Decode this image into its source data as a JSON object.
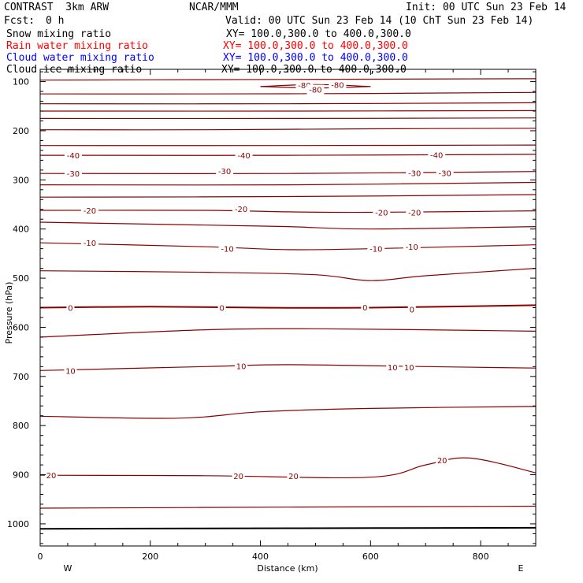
{
  "header": {
    "left_title": "CONTRAST  3km ARW",
    "center_title": "NCAR/MMM",
    "init": "Init: 00 UTC Sun 23 Feb 14",
    "fcst_label": "Fcst:",
    "fcst_value": "0 h",
    "valid": "Valid: 00 UTC Sun 23 Feb 14 (10 ChT Sun 23 Feb 14)"
  },
  "fields": [
    {
      "name": "Snow mixing ratio",
      "xy": "XY= 100.0,300.0 to 400.0,300.0",
      "color": "#000000"
    },
    {
      "name": "Rain water mixing ratio",
      "xy": "XY= 100.0,300.0 to 400.0,300.0",
      "color": "#ff0000"
    },
    {
      "name": "Cloud water mixing ratio",
      "xy": "XY= 100.0,300.0 to 400.0,300.0",
      "color": "#0000ff"
    },
    {
      "name": "Cloud ice mixing ratio",
      "xy": "XY= 100.0,300.0 to 400.0,300.0",
      "color": "#000000"
    }
  ],
  "axis": {
    "xlabel": "Distance (km)",
    "ylabel": "Pressure (hPa)",
    "west": "W",
    "east": "E"
  },
  "chart_data": {
    "type": "line",
    "xlim": [
      0,
      900
    ],
    "ylim": [
      1045,
      75
    ],
    "y_scale": "linear",
    "x_ticks": [
      0,
      200,
      400,
      600,
      800
    ],
    "y_ticks": [
      100,
      200,
      300,
      400,
      500,
      600,
      700,
      800,
      900,
      1000
    ],
    "contour_color": "#8b0000",
    "contours": [
      {
        "label": "",
        "points": [
          [
            0,
            97
          ],
          [
            300,
            96
          ],
          [
            600,
            95
          ],
          [
            900,
            94
          ]
        ]
      },
      {
        "label": "-80",
        "points": [
          [
            400,
            110
          ],
          [
            500,
            106
          ],
          [
            600,
            110
          ]
        ]
      },
      {
        "label": "-80",
        "points": [
          [
            400,
            110
          ],
          [
            500,
            113
          ],
          [
            600,
            110
          ]
        ]
      },
      {
        "label": "",
        "points": [
          [
            0,
            125
          ],
          [
            300,
            125
          ],
          [
            600,
            124
          ],
          [
            900,
            122
          ]
        ]
      },
      {
        "label": "",
        "points": [
          [
            0,
            145
          ],
          [
            450,
            145
          ],
          [
            900,
            143
          ]
        ]
      },
      {
        "label": "",
        "points": [
          [
            0,
            160
          ],
          [
            450,
            160
          ],
          [
            900,
            159
          ]
        ]
      },
      {
        "label": "",
        "points": [
          [
            0,
            175
          ],
          [
            450,
            175
          ],
          [
            900,
            174
          ]
        ]
      },
      {
        "label": "",
        "points": [
          [
            0,
            198
          ],
          [
            300,
            198
          ],
          [
            600,
            196
          ],
          [
            900,
            195
          ]
        ]
      },
      {
        "label": "",
        "points": [
          [
            0,
            230
          ],
          [
            450,
            230
          ],
          [
            900,
            229
          ]
        ]
      },
      {
        "label": "-40",
        "points": [
          [
            0,
            250
          ],
          [
            450,
            250
          ],
          [
            900,
            248
          ]
        ]
      },
      {
        "label": "-30",
        "points": [
          [
            0,
            287
          ],
          [
            450,
            287
          ],
          [
            900,
            283
          ]
        ]
      },
      {
        "label": "",
        "points": [
          [
            0,
            310
          ],
          [
            450,
            310
          ],
          [
            900,
            305
          ]
        ]
      },
      {
        "label": "",
        "points": [
          [
            0,
            335
          ],
          [
            450,
            334
          ],
          [
            900,
            330
          ]
        ]
      },
      {
        "label": "-20",
        "points": [
          [
            0,
            362
          ],
          [
            300,
            362
          ],
          [
            450,
            365
          ],
          [
            600,
            366
          ],
          [
            900,
            363
          ]
        ]
      },
      {
        "label": "",
        "points": [
          [
            0,
            386
          ],
          [
            300,
            392
          ],
          [
            450,
            395
          ],
          [
            600,
            400
          ],
          [
            900,
            395
          ]
        ]
      },
      {
        "label": "-10",
        "points": [
          [
            0,
            428
          ],
          [
            300,
            436
          ],
          [
            450,
            442
          ],
          [
            600,
            440
          ],
          [
            900,
            432
          ]
        ]
      },
      {
        "label": "",
        "points": [
          [
            0,
            485
          ],
          [
            300,
            488
          ],
          [
            500,
            493
          ],
          [
            600,
            505
          ],
          [
            700,
            495
          ],
          [
            900,
            480
          ]
        ]
      },
      {
        "label": "0",
        "points": [
          [
            0,
            560
          ],
          [
            200,
            558
          ],
          [
            400,
            560
          ],
          [
            600,
            560
          ],
          [
            900,
            555
          ]
        ]
      },
      {
        "label": "",
        "points": [
          [
            0,
            620
          ],
          [
            300,
            605
          ],
          [
            500,
            603
          ],
          [
            700,
            605
          ],
          [
            900,
            608
          ]
        ]
      },
      {
        "label": "10",
        "points": [
          [
            0,
            688
          ],
          [
            300,
            680
          ],
          [
            450,
            676
          ],
          [
            700,
            680
          ],
          [
            900,
            683
          ]
        ]
      },
      {
        "label": "",
        "points": [
          [
            0,
            781
          ],
          [
            250,
            785
          ],
          [
            400,
            772
          ],
          [
            600,
            765
          ],
          [
            900,
            761
          ]
        ]
      },
      {
        "label": "20",
        "points": [
          [
            0,
            901
          ],
          [
            300,
            902
          ],
          [
            600,
            905
          ],
          [
            700,
            880
          ],
          [
            780,
            866
          ],
          [
            900,
            896
          ]
        ]
      },
      {
        "label": "",
        "points": [
          [
            0,
            968
          ],
          [
            450,
            966
          ],
          [
            900,
            964
          ]
        ]
      }
    ],
    "labels": [
      {
        "text": "-80",
        "x": 480,
        "y": 107
      },
      {
        "text": "-80",
        "x": 540,
        "y": 106
      },
      {
        "text": "-80",
        "x": 500,
        "y": 116
      },
      {
        "text": "-40",
        "x": 60,
        "y": 250
      },
      {
        "text": "-40",
        "x": 370,
        "y": 250
      },
      {
        "text": "-40",
        "x": 720,
        "y": 249
      },
      {
        "text": "-30",
        "x": 60,
        "y": 287
      },
      {
        "text": "-30",
        "x": 335,
        "y": 282
      },
      {
        "text": "-30",
        "x": 680,
        "y": 286
      },
      {
        "text": "-30",
        "x": 735,
        "y": 286
      },
      {
        "text": "-20",
        "x": 90,
        "y": 362
      },
      {
        "text": "-20",
        "x": 365,
        "y": 359
      },
      {
        "text": "-20",
        "x": 620,
        "y": 366
      },
      {
        "text": "-20",
        "x": 680,
        "y": 366
      },
      {
        "text": "-10",
        "x": 90,
        "y": 428
      },
      {
        "text": "-10",
        "x": 340,
        "y": 440
      },
      {
        "text": "-10",
        "x": 610,
        "y": 440
      },
      {
        "text": "-10",
        "x": 675,
        "y": 436
      },
      {
        "text": "0",
        "x": 55,
        "y": 560
      },
      {
        "text": "0",
        "x": 330,
        "y": 560
      },
      {
        "text": "0",
        "x": 590,
        "y": 559
      },
      {
        "text": "0",
        "x": 675,
        "y": 563
      },
      {
        "text": "10",
        "x": 55,
        "y": 688
      },
      {
        "text": "10",
        "x": 365,
        "y": 679
      },
      {
        "text": "10",
        "x": 640,
        "y": 681
      },
      {
        "text": "10",
        "x": 670,
        "y": 681
      },
      {
        "text": "20",
        "x": 20,
        "y": 901
      },
      {
        "text": "20",
        "x": 360,
        "y": 902
      },
      {
        "text": "20",
        "x": 460,
        "y": 902
      },
      {
        "text": "20",
        "x": 730,
        "y": 870
      }
    ],
    "surface_line": {
      "points": [
        [
          0,
          1010
        ],
        [
          450,
          1009
        ],
        [
          900,
          1008
        ]
      ],
      "color": "#000000"
    }
  }
}
